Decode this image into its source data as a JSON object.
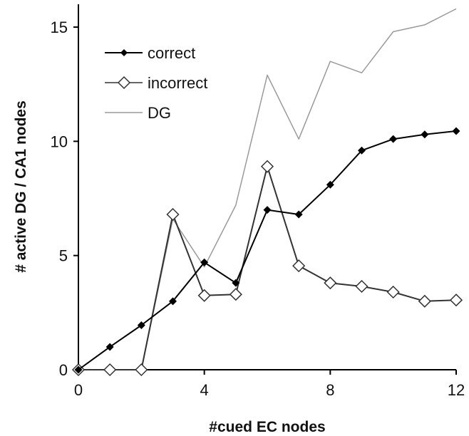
{
  "chart_data": {
    "type": "line",
    "xlabel": "#cued EC nodes",
    "ylabel": "# active DG / CA1 nodes",
    "xlim": [
      0,
      12
    ],
    "ylim": [
      0,
      16
    ],
    "xticks": [
      "0",
      "4",
      "8",
      "12"
    ],
    "yticks": [
      "0",
      "5",
      "10",
      "15"
    ],
    "grid": false,
    "legend_position": "top-left",
    "x": [
      0,
      1,
      2,
      3,
      4,
      5,
      6,
      7,
      8,
      9,
      10,
      11,
      12
    ],
    "series": [
      {
        "name": "correct",
        "marker": "filled-diamond",
        "color": "#000000",
        "values": [
          0,
          1.0,
          1.95,
          3.0,
          4.7,
          3.8,
          7.0,
          6.8,
          8.1,
          9.6,
          10.1,
          10.3,
          10.45
        ]
      },
      {
        "name": "incorrect",
        "marker": "open-diamond",
        "color": "#333333",
        "values": [
          0,
          0,
          0,
          6.8,
          3.25,
          3.3,
          8.9,
          4.55,
          3.8,
          3.65,
          3.4,
          3.0,
          3.05
        ]
      },
      {
        "name": "DG",
        "marker": "none",
        "color": "#9a9a9a",
        "values": [
          0,
          0,
          0,
          6.6,
          4.5,
          7.2,
          12.9,
          10.1,
          13.5,
          13.0,
          14.8,
          15.1,
          15.8
        ]
      }
    ]
  }
}
